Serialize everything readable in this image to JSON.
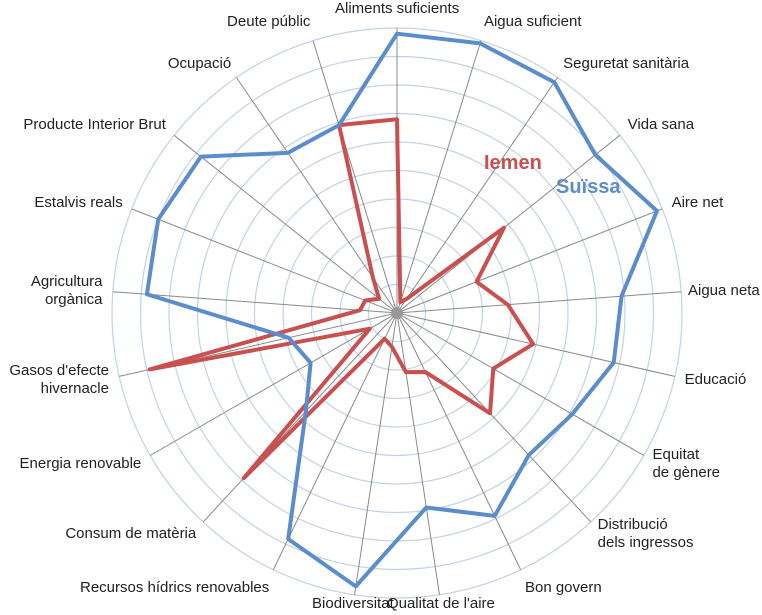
{
  "chart_data": {
    "type": "radar",
    "categories": [
      "Aliments suficients",
      "Aigua suficient",
      "Seguretat sanitària",
      "Vida sana",
      "Aire net",
      "Aigua neta",
      "Educació",
      "Equitat\nde gènere",
      "Distribució\ndels ingressos",
      "Bon govern",
      "Qualitat de l'aire",
      "Biodiversitat",
      "Recursos hídrics renovables",
      "Consum de matèria",
      "Energia renovable",
      "Gasos d'efecte\nhivernacle",
      "Agricultura\norgànica",
      "Estalvis reals",
      "Producte Interior Brut",
      "Ocupació",
      "Deute públic"
    ],
    "series": [
      {
        "name": "Suïssa",
        "color": "#5b8ccc",
        "values": [
          9.8,
          9.9,
          9.8,
          8.9,
          9.8,
          7.9,
          7.8,
          7.1,
          6.8,
          7.9,
          6.9,
          9.7,
          8.8,
          4.7,
          3.5,
          3.9,
          8.8,
          9.0,
          8.8,
          6.8,
          6.9
        ]
      },
      {
        "name": "Iemen",
        "color": "#c9504f",
        "values": [
          6.8,
          0.4,
          0.6,
          4.8,
          3.0,
          3.9,
          4.9,
          3.9,
          4.8,
          2.3,
          2.1,
          1.2,
          1.0,
          7.9,
          1.1,
          8.9,
          1.3,
          1.2,
          0.8,
          1.5,
          6.9
        ]
      }
    ],
    "rlim": [
      0,
      10
    ],
    "rticks": [
      1,
      2,
      3,
      4,
      5,
      6,
      7,
      8,
      9,
      10
    ],
    "grid": true
  }
}
